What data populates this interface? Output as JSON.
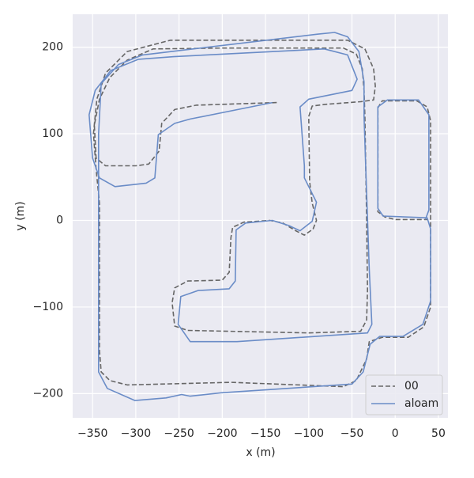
{
  "chart_data": {
    "type": "line",
    "xlabel": "x (m)",
    "ylabel": "y (m)",
    "xlim": [
      -373,
      61
    ],
    "ylim": [
      -228,
      238
    ],
    "xticks": [
      {
        "value": -350,
        "label": "−350"
      },
      {
        "value": -300,
        "label": "−300"
      },
      {
        "value": -250,
        "label": "−250"
      },
      {
        "value": -200,
        "label": "−200"
      },
      {
        "value": -150,
        "label": "−150"
      },
      {
        "value": -100,
        "label": "−100"
      },
      {
        "value": -50,
        "label": "−50"
      },
      0,
      50
    ],
    "yticks": [
      {
        "value": -200,
        "label": "−200"
      },
      {
        "value": -100,
        "label": "−100"
      },
      0,
      100,
      200
    ],
    "grid": true,
    "legend": "lower right",
    "series": [
      {
        "name": "00",
        "color": "#666666",
        "linestyle": "dashed",
        "x": [
          -137,
          -230,
          -255,
          -270,
          -273,
          -285,
          -300,
          -335,
          -346,
          -348,
          -342,
          -330,
          -310,
          -280,
          -200,
          -60,
          -45,
          -38,
          -36,
          -35,
          -33,
          -32,
          -33,
          -40,
          -100,
          -240,
          -255,
          -258,
          -255,
          -240,
          -200,
          -192,
          -190,
          -188,
          -175,
          -145,
          -130,
          -115,
          -105,
          -95,
          -91,
          -96,
          -99,
          -100,
          -96,
          -80,
          -40,
          -25,
          -23,
          -25,
          -35,
          -55,
          -260,
          -310,
          -335,
          -345,
          -349,
          -346,
          -342,
          -342,
          -340,
          -330,
          -310,
          -190,
          -60,
          -45,
          -33,
          -30,
          -15,
          15,
          33,
          41,
          41,
          41,
          37,
          25,
          -15,
          -20,
          -20,
          -12,
          0,
          38
        ],
        "values": [
          136,
          133,
          128,
          112,
          80,
          65,
          63,
          63,
          72,
          110,
          140,
          165,
          185,
          198,
          199,
          199,
          192,
          175,
          150,
          120,
          0,
          -80,
          -115,
          -128,
          -130,
          -127,
          -122,
          -95,
          -78,
          -70,
          -69,
          -60,
          -20,
          -8,
          -2,
          0,
          -3,
          -12,
          -17,
          -10,
          0,
          20,
          45,
          120,
          132,
          134,
          137,
          139,
          155,
          175,
          198,
          208,
          208,
          195,
          170,
          140,
          100,
          60,
          20,
          -150,
          -175,
          -185,
          -190,
          -187,
          -192,
          -185,
          -160,
          -140,
          -135,
          -135,
          -123,
          -100,
          -15,
          115,
          131,
          138,
          138,
          130,
          10,
          4,
          1,
          1
        ]
      },
      {
        "name": "aloam",
        "color": "#6a8cc7",
        "linestyle": "solid",
        "x": [
          -142,
          -237,
          -255,
          -274,
          -278,
          -288,
          -324,
          -342,
          -350,
          -354,
          -347,
          -329,
          -297,
          -256,
          -82,
          -55,
          -44,
          -50,
          -100,
          -110,
          -105,
          -105,
          -91,
          -96,
          -110,
          -123,
          -142,
          -173,
          -184,
          -185,
          -192,
          -228,
          -248,
          -251,
          -237,
          -183,
          -32,
          -27,
          -30,
          -34,
          -36,
          -36,
          -42,
          -55,
          -70,
          -90,
          -292,
          -320,
          -340,
          -343,
          -343,
          -333,
          -301,
          -265,
          -247,
          -237,
          -201,
          -50,
          -37,
          -29,
          -18,
          9,
          32,
          41,
          41,
          37,
          -14,
          -20,
          -20,
          -9,
          27,
          39,
          39,
          35
        ],
        "values": [
          136,
          117,
          112,
          99,
          49,
          43,
          39,
          49,
          72,
          122,
          150,
          173,
          186,
          189,
          198,
          191,
          163,
          150,
          140,
          131,
          63,
          49,
          21,
          -1,
          -12,
          -6,
          0,
          -3,
          -11,
          -70,
          -79,
          -81,
          -88,
          -120,
          -140,
          -140,
          -130,
          -120,
          -56,
          60,
          120,
          160,
          195,
          212,
          217,
          215,
          191,
          180,
          158,
          100,
          -175,
          -194,
          -208,
          -205,
          -201,
          -203,
          -199,
          -189,
          -175,
          -143,
          -134,
          -134,
          -120,
          -93,
          -10,
          3,
          5,
          14,
          131,
          139,
          139,
          122,
          12,
          1
        ]
      }
    ]
  }
}
